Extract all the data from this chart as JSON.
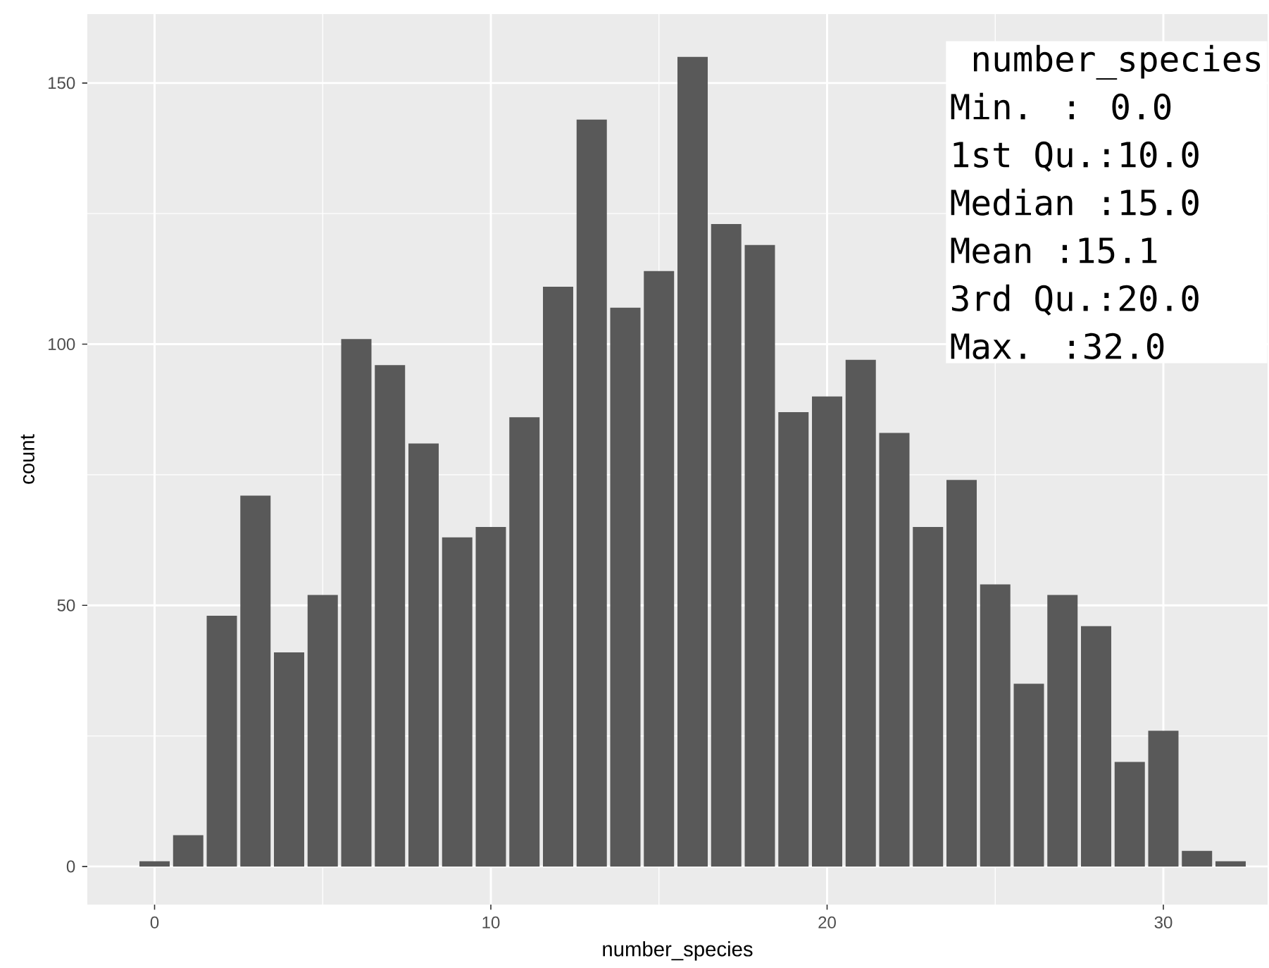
{
  "chart_data": {
    "type": "bar",
    "xlabel": "number_species",
    "ylabel": "count",
    "x": [
      0,
      1,
      2,
      3,
      4,
      5,
      6,
      7,
      8,
      9,
      10,
      11,
      12,
      13,
      14,
      15,
      16,
      17,
      18,
      19,
      20,
      21,
      22,
      23,
      24,
      25,
      26,
      27,
      28,
      29,
      30,
      31,
      32
    ],
    "values": [
      1,
      6,
      48,
      71,
      41,
      52,
      101,
      96,
      81,
      63,
      65,
      86,
      111,
      143,
      107,
      114,
      155,
      123,
      119,
      87,
      90,
      97,
      83,
      65,
      74,
      54,
      35,
      52,
      46,
      20,
      26,
      3,
      1
    ],
    "color": "#595959",
    "xlim": [
      -2,
      33.1
    ],
    "ylim": [
      -7.3,
      163.2
    ],
    "xticks": [
      0,
      10,
      20,
      30
    ],
    "yticks": [
      0,
      50,
      100,
      150
    ],
    "grid": true,
    "annotations": [
      "number_species",
      "Min.   : 0.0",
      "1st Qu.:10.0",
      "Median :15.0",
      "Mean   :15.1",
      "3rd Qu.:20.0",
      "Max.   :32.0"
    ]
  }
}
